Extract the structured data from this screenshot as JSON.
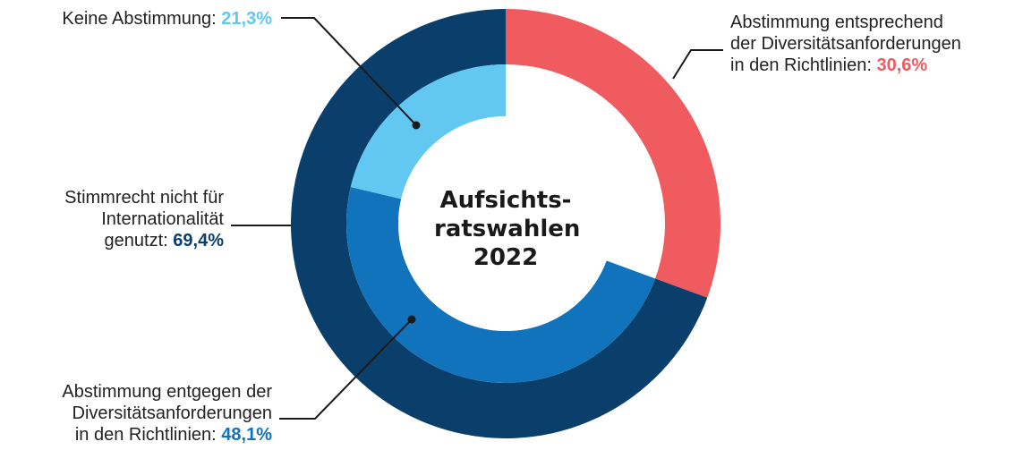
{
  "chart_data": {
    "type": "donut",
    "center_label": [
      "Aufsichts-",
      "ratswahlen",
      "2022"
    ],
    "outer_ring": [
      {
        "label_lines": [
          "Abstimmung entsprechend",
          "der Diversitätsanforderungen",
          "in den Richtlinien"
        ],
        "value": 30.6,
        "value_text": "30,6%",
        "color": "#ef5b5e"
      },
      {
        "label_lines": [
          "Stimmrecht nicht für",
          "Internationalität",
          "genutzt"
        ],
        "value": 69.4,
        "value_text": "69,4%",
        "color": "#0b3f6b"
      }
    ],
    "inner_ring": [
      {
        "label_lines": [
          "Abstimmung entgegen der",
          "Diversitätsanforderungen",
          "in den Richtlinien"
        ],
        "value": 48.1,
        "value_text": "48,1%",
        "color": "#1273bd"
      },
      {
        "label_lines": [
          "Keine Abstimmung"
        ],
        "value": 21.3,
        "value_text": "21,3%",
        "color": "#62c8f2"
      }
    ]
  }
}
